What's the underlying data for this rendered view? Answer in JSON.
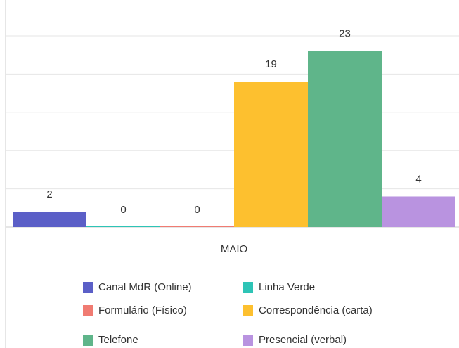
{
  "chart_data": {
    "type": "bar",
    "categories": [
      "MAIO"
    ],
    "series": [
      {
        "name": "Canal MdR (Online)",
        "color": "#5b5fc7",
        "values": [
          2
        ]
      },
      {
        "name": "Linha Verde",
        "color": "#2ec4b6",
        "values": [
          0
        ]
      },
      {
        "name": "Formulário (Físico)",
        "color": "#f07b72",
        "values": [
          0
        ]
      },
      {
        "name": "Correspondência (carta)",
        "color": "#fdc02f",
        "values": [
          19
        ]
      },
      {
        "name": "Telefone",
        "color": "#5fb58a",
        "values": [
          23
        ]
      },
      {
        "name": "Presencial (verbal)",
        "color": "#b993e0",
        "values": [
          4
        ]
      }
    ],
    "ylim": [
      0,
      25
    ],
    "yticks": [
      0,
      5,
      10,
      15,
      20,
      25
    ],
    "grid": true
  }
}
